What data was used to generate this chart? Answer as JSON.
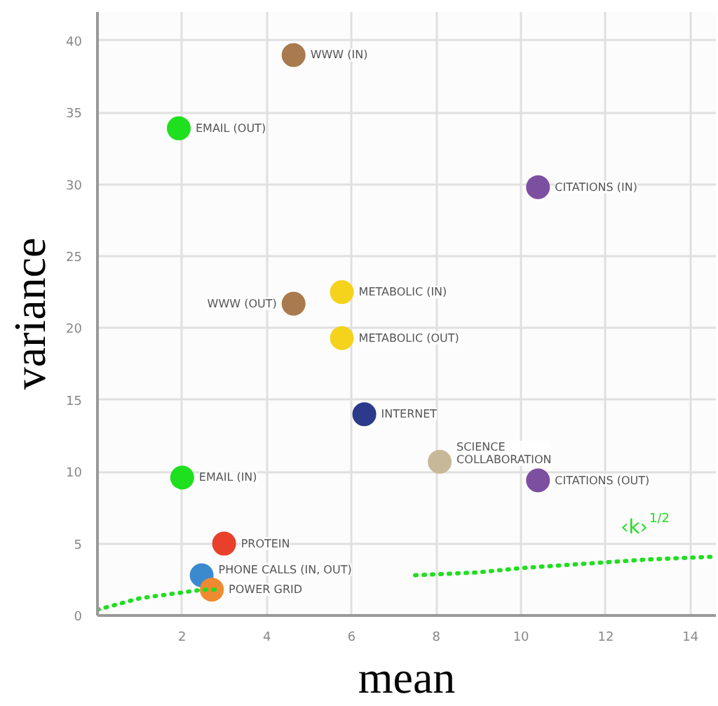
{
  "chart_data": {
    "type": "scatter",
    "xlabel": "mean",
    "ylabel": "variance",
    "xlim": [
      0,
      14.6
    ],
    "ylim": [
      0,
      42
    ],
    "xticks": [
      2,
      4,
      6,
      8,
      10,
      12,
      14
    ],
    "yticks": [
      0,
      5,
      10,
      15,
      20,
      25,
      30,
      35,
      40
    ],
    "grid": true,
    "marker": "circle",
    "series": [
      {
        "name": "WWW (IN)",
        "color": "#a87a4e",
        "x": [
          4.63
        ],
        "values": [
          39.0
        ]
      },
      {
        "name": "EMAIL (OUT)",
        "color": "#1ee01e",
        "x": [
          1.92
        ],
        "values": [
          33.9
        ]
      },
      {
        "name": "CITATIONS (IN)",
        "color": "#7d4fa0",
        "x": [
          10.4
        ],
        "values": [
          29.8
        ]
      },
      {
        "name": "METABOLIC (IN)",
        "color": "#f5d21c",
        "x": [
          5.77
        ],
        "values": [
          22.5
        ]
      },
      {
        "name": "WWW (OUT)",
        "color": "#a87a4e",
        "x": [
          4.63
        ],
        "values": [
          21.7
        ]
      },
      {
        "name": "METABOLIC (OUT)",
        "color": "#f5d21c",
        "x": [
          5.77
        ],
        "values": [
          19.3
        ]
      },
      {
        "name": "INTERNET",
        "color": "#2b3a8a",
        "x": [
          6.3
        ],
        "values": [
          14.0
        ]
      },
      {
        "name": "SCIENCE\nCOLLABORATION",
        "color": "#c8b89a",
        "x": [
          8.08
        ],
        "values": [
          10.7
        ]
      },
      {
        "name": "CITATIONS (OUT)",
        "color": "#7d4fa0",
        "x": [
          10.4
        ],
        "values": [
          9.4
        ]
      },
      {
        "name": "EMAIL (IN)",
        "color": "#1ee01e",
        "x": [
          2.0
        ],
        "values": [
          9.6
        ]
      },
      {
        "name": "PROTEIN",
        "color": "#e8402a",
        "x": [
          2.99
        ],
        "values": [
          5.0
        ]
      },
      {
        "name": "PHONE CALLS (IN, OUT)",
        "color": "#3b8ad0",
        "x": [
          2.46
        ],
        "values": [
          2.8
        ]
      },
      {
        "name": "POWER GRID",
        "color": "#f08a30",
        "x": [
          2.7
        ],
        "values": [
          1.8
        ]
      },
      {
        "type": "line",
        "line_style": "dotted",
        "marker": "none",
        "color": "#22dd22",
        "x": [
          0,
          0.5,
          1,
          1.5,
          2,
          2.5,
          2.8,
          5,
          7.5,
          9,
          10,
          11,
          12,
          13,
          14.6
        ],
        "values": [
          0.4,
          0.8,
          1.2,
          1.4,
          1.6,
          1.8,
          1.8,
          null,
          2.8,
          3.0,
          3.3,
          3.5,
          3.7,
          3.9,
          4.1
        ]
      }
    ],
    "annotations": [
      "‹k›$^{1/2}$"
    ]
  }
}
